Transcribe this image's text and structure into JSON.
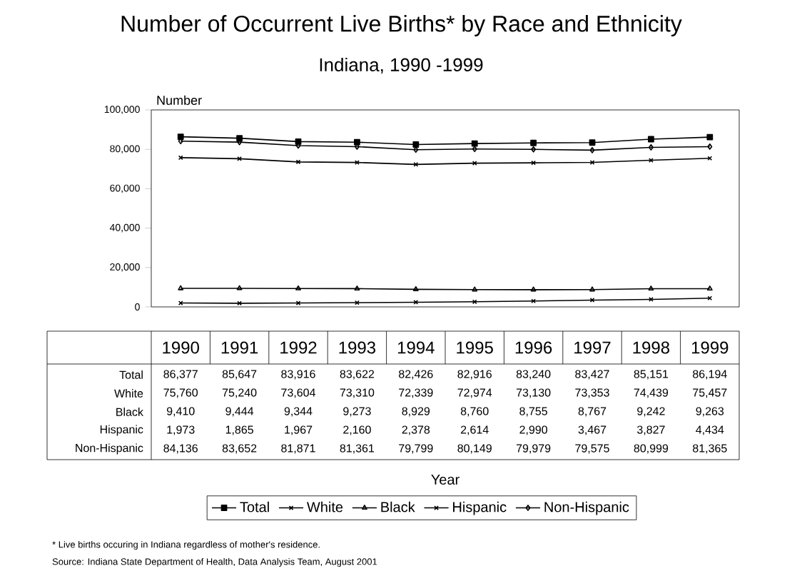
{
  "chart_data": {
    "type": "line",
    "title": "Number of Occurrent Live Births* by Race and Ethnicity",
    "subtitle": "Indiana, 1990 -1999",
    "ylabel": "Number",
    "categories": [
      "1990",
      "1991",
      "1992",
      "1993",
      "1994",
      "1995",
      "1996",
      "1997",
      "1998",
      "1999"
    ],
    "series": [
      {
        "name": "Total",
        "color": "#000000",
        "marker": "square",
        "values": [
          86377,
          85647,
          83916,
          83622,
          82426,
          82916,
          83240,
          83427,
          85151,
          86194
        ],
        "value_labels": [
          "86,377",
          "85,647",
          "83,916",
          "83,622",
          "82,426",
          "82,916",
          "83,240",
          "83,427",
          "85,151",
          "86,194"
        ]
      },
      {
        "name": "White",
        "color": "#000000",
        "marker": "cross",
        "values": [
          75760,
          75240,
          73604,
          73310,
          72339,
          72974,
          73130,
          73353,
          74439,
          75457
        ],
        "value_labels": [
          "75,760",
          "75,240",
          "73,604",
          "73,310",
          "72,339",
          "72,974",
          "73,130",
          "73,353",
          "74,439",
          "75,457"
        ]
      },
      {
        "name": "Black",
        "color": "#000000",
        "marker": "triangle",
        "values": [
          9410,
          9444,
          9344,
          9273,
          8929,
          8760,
          8755,
          8767,
          9242,
          9263
        ],
        "value_labels": [
          "9,410",
          "9,444",
          "9,344",
          "9,273",
          "8,929",
          "8,760",
          "8,755",
          "8,767",
          "9,242",
          "9,263"
        ]
      },
      {
        "name": "Hispanic",
        "color": "#000000",
        "marker": "cross",
        "values": [
          1973,
          1865,
          1967,
          2160,
          2378,
          2614,
          2990,
          3467,
          3827,
          4434
        ],
        "value_labels": [
          "1,973",
          "1,865",
          "1,967",
          "2,160",
          "2,378",
          "2,614",
          "2,990",
          "3,467",
          "3,827",
          "4,434"
        ]
      },
      {
        "name": "Non-Hispanic",
        "color": "#000000",
        "marker": "diamond",
        "values": [
          84136,
          83652,
          81871,
          81361,
          79799,
          80149,
          79979,
          79575,
          80999,
          81365
        ],
        "value_labels": [
          "84,136",
          "83,652",
          "81,871",
          "81,361",
          "79,799",
          "80,149",
          "79,979",
          "79,575",
          "80,999",
          "81,365"
        ]
      }
    ],
    "ylim": [
      0,
      100000
    ],
    "yticks": [
      {
        "value": 0,
        "label": "0"
      },
      {
        "value": 20000,
        "label": "20,000"
      },
      {
        "value": 40000,
        "label": "40,000"
      },
      {
        "value": 60000,
        "label": "60,000"
      },
      {
        "value": 80000,
        "label": "80,000"
      },
      {
        "value": 100000,
        "label": "100,000"
      }
    ],
    "legend": "bottom",
    "line_style": "solid",
    "annotations": [
      "Year",
      "* Live births occuring in Indiana regardless of mother's residence.",
      "Source:  Indiana State Department of Health, Data Analysis Team, August 2001"
    ]
  }
}
